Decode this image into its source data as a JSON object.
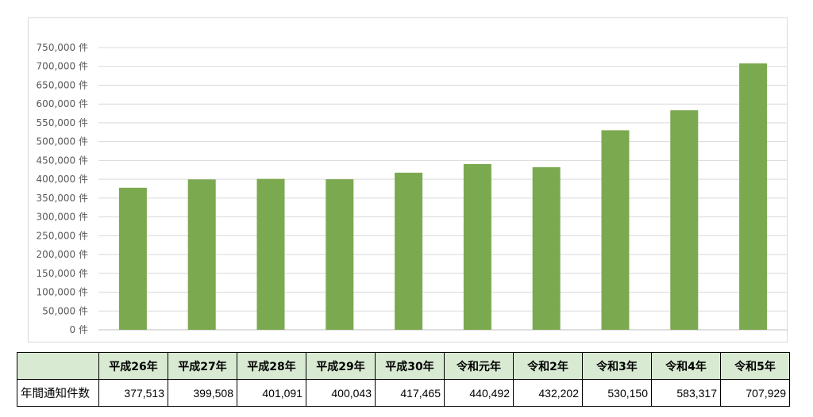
{
  "chart_data": {
    "type": "bar",
    "categories": [
      "平成26年",
      "平成27年",
      "平成28年",
      "平成29年",
      "平成30年",
      "令和元年",
      "令和2年",
      "令和3年",
      "令和4年",
      "令和5年"
    ],
    "values": [
      377513,
      399508,
      401091,
      400043,
      417465,
      440492,
      432202,
      530150,
      583317,
      707929
    ],
    "ylim": [
      0,
      750000
    ],
    "ytick_labels": [
      "0 件",
      "50,000 件",
      "100,000 件",
      "150,000 件",
      "200,000 件",
      "250,000 件",
      "300,000 件",
      "350,000 件",
      "400,000 件",
      "450,000 件",
      "500,000 件",
      "550,000 件",
      "600,000 件",
      "650,000 件",
      "700,000 件",
      "750,000 件"
    ],
    "bar_color": "#7ba94f",
    "grid": true,
    "legend": "none"
  },
  "table": {
    "row_label": "年間通知件数",
    "headers": [
      "平成26年",
      "平成27年",
      "平成28年",
      "平成29年",
      "平成30年",
      "令和元年",
      "令和2年",
      "令和3年",
      "令和4年",
      "令和5年"
    ],
    "values": [
      "377,513",
      "399,508",
      "401,091",
      "400,043",
      "417,465",
      "440,492",
      "432,202",
      "530,150",
      "583,317",
      "707,929"
    ]
  }
}
